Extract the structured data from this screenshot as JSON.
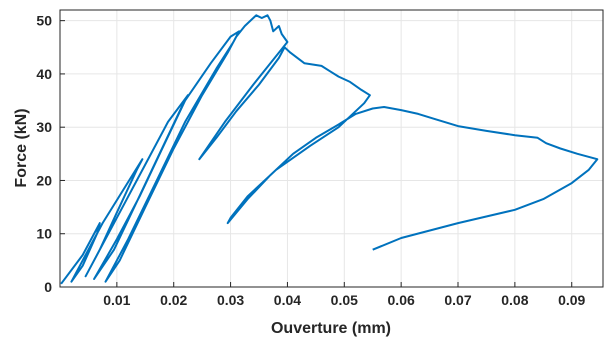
{
  "chart_data": {
    "type": "line",
    "title": "",
    "xlabel": "Ouverture (mm)",
    "ylabel": "Force (kN)",
    "xlim": [
      0,
      0.0955
    ],
    "ylim": [
      0,
      52
    ],
    "xticks": [
      0.01,
      0.02,
      0.03,
      0.04,
      0.05,
      0.06,
      0.07,
      0.08,
      0.09
    ],
    "xtick_labels": [
      "0.01",
      "0.02",
      "0.03",
      "0.04",
      "0.05",
      "0.06",
      "0.07",
      "0.08",
      "0.09"
    ],
    "yticks": [
      0,
      10,
      20,
      30,
      40,
      50
    ],
    "ytick_labels": [
      "0",
      "10",
      "20",
      "30",
      "40",
      "50"
    ],
    "grid": true,
    "legend": "none",
    "line_color": "#0072BD",
    "series": [
      {
        "points": [
          [
            0.0002,
            0.6
          ],
          [
            0.004,
            6
          ],
          [
            0.007,
            12
          ],
          [
            0.0065,
            10
          ],
          [
            0.004,
            4
          ],
          [
            0.002,
            1
          ],
          [
            0.0045,
            6
          ],
          [
            0.0075,
            12
          ],
          [
            0.011,
            18
          ],
          [
            0.0145,
            24
          ],
          [
            0.0135,
            22
          ],
          [
            0.01,
            14
          ],
          [
            0.007,
            7
          ],
          [
            0.0045,
            2
          ],
          [
            0.0075,
            8
          ],
          [
            0.0115,
            16
          ],
          [
            0.015,
            23
          ],
          [
            0.019,
            31
          ],
          [
            0.0225,
            36
          ],
          [
            0.0215,
            34
          ],
          [
            0.0175,
            25
          ],
          [
            0.0135,
            16
          ],
          [
            0.0095,
            7
          ],
          [
            0.006,
            1.5
          ],
          [
            0.01,
            9
          ],
          [
            0.014,
            17
          ],
          [
            0.018,
            26
          ],
          [
            0.022,
            35
          ],
          [
            0.0265,
            42
          ],
          [
            0.03,
            47
          ],
          [
            0.0315,
            48
          ],
          [
            0.0295,
            44
          ],
          [
            0.025,
            36
          ],
          [
            0.02,
            26
          ],
          [
            0.015,
            15
          ],
          [
            0.0105,
            5
          ],
          [
            0.008,
            1
          ],
          [
            0.012,
            9
          ],
          [
            0.017,
            20
          ],
          [
            0.022,
            31
          ],
          [
            0.0275,
            41
          ],
          [
            0.0305,
            46
          ],
          [
            0.031,
            47
          ],
          [
            0.0325,
            49
          ],
          [
            0.0345,
            51
          ],
          [
            0.0355,
            50.5
          ],
          [
            0.0365,
            51
          ],
          [
            0.037,
            50
          ],
          [
            0.0375,
            48
          ],
          [
            0.0385,
            49
          ],
          [
            0.039,
            47.5
          ],
          [
            0.04,
            46
          ],
          [
            0.0385,
            44
          ],
          [
            0.034,
            38
          ],
          [
            0.029,
            31
          ],
          [
            0.0245,
            24
          ],
          [
            0.0275,
            28
          ],
          [
            0.031,
            33
          ],
          [
            0.035,
            38
          ],
          [
            0.0385,
            43
          ],
          [
            0.0395,
            45
          ],
          [
            0.0405,
            44
          ],
          [
            0.043,
            42
          ],
          [
            0.046,
            41.5
          ],
          [
            0.0475,
            40.5
          ],
          [
            0.049,
            39.5
          ],
          [
            0.051,
            38.5
          ],
          [
            0.053,
            37
          ],
          [
            0.0545,
            36
          ],
          [
            0.0535,
            34.5
          ],
          [
            0.049,
            30
          ],
          [
            0.044,
            26.5
          ],
          [
            0.038,
            22
          ],
          [
            0.033,
            17
          ],
          [
            0.03,
            13
          ],
          [
            0.0295,
            12
          ],
          [
            0.033,
            16.5
          ],
          [
            0.037,
            21
          ],
          [
            0.041,
            25
          ],
          [
            0.045,
            28
          ],
          [
            0.049,
            30.5
          ],
          [
            0.052,
            32.5
          ],
          [
            0.055,
            33.5
          ],
          [
            0.057,
            33.8
          ],
          [
            0.06,
            33.2
          ],
          [
            0.063,
            32.5
          ],
          [
            0.066,
            31.5
          ],
          [
            0.07,
            30.2
          ],
          [
            0.075,
            29.3
          ],
          [
            0.08,
            28.5
          ],
          [
            0.084,
            28
          ],
          [
            0.0855,
            27
          ],
          [
            0.088,
            26
          ],
          [
            0.091,
            25
          ],
          [
            0.0945,
            24
          ],
          [
            0.093,
            22
          ],
          [
            0.09,
            19.5
          ],
          [
            0.085,
            16.5
          ],
          [
            0.08,
            14.5
          ],
          [
            0.07,
            12
          ],
          [
            0.06,
            9.2
          ],
          [
            0.055,
            7
          ]
        ]
      }
    ]
  }
}
